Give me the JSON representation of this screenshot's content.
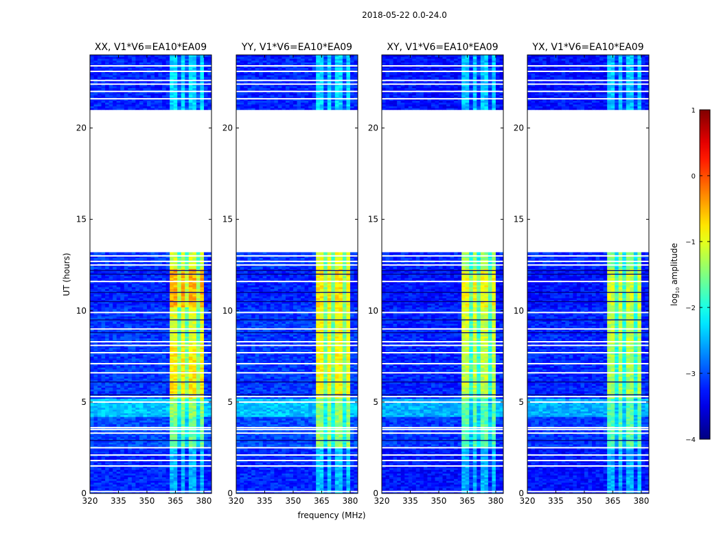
{
  "chart_data": {
    "type": "heatmap",
    "suptitle": "2018-05-22 0.0-24.0",
    "xlabel": "frequency (MHz)",
    "ylabel": "UT (hours)",
    "xlim": [
      320,
      384
    ],
    "ylim": [
      0,
      24
    ],
    "xticks": [
      320,
      335,
      350,
      365,
      380
    ],
    "yticks": [
      0,
      5,
      10,
      15,
      20
    ],
    "colormap": "jet",
    "colorbar": {
      "label": "log",
      "label_sub": "10",
      "label_rest": " amplitude",
      "range": [
        -4,
        1
      ],
      "ticks": [
        1,
        0,
        -1,
        -2,
        -3,
        -4
      ],
      "tick_labels": [
        "1",
        "0",
        "−1",
        "−2",
        "−3",
        "−4"
      ]
    },
    "rfi_band_mhz": [
      361,
      380
    ],
    "rfi_channel_gaps_mhz": [
      366.5,
      371.5,
      376.5
    ],
    "segments": [
      {
        "start": 0.0,
        "end": 2.5,
        "bg": -3.2
      },
      {
        "start": 2.5,
        "end": 4.2,
        "bg": -3.0
      },
      {
        "start": 4.2,
        "end": 5.2,
        "bg": -2.4
      },
      {
        "start": 5.2,
        "end": 8.2,
        "bg": -3.1
      },
      {
        "start": 8.2,
        "end": 10.2,
        "bg": -3.1
      },
      {
        "start": 10.2,
        "end": 12.3,
        "bg": -3.2
      },
      {
        "start": 12.3,
        "end": 13.2,
        "bg": -3.1
      },
      {
        "start": 21.0,
        "end": 24.0,
        "bg": -3.2
      }
    ],
    "flagged_hours_white": [
      0.1,
      1.5,
      1.8,
      2.1,
      2.5,
      3.3,
      3.5,
      3.6,
      5.0,
      5.3,
      6.6,
      7.1,
      7.7,
      8.1,
      8.3,
      9.0,
      9.9,
      11.6,
      12.5,
      12.7,
      13.0,
      21.6,
      22.0,
      22.4,
      22.6,
      23.1,
      23.4
    ],
    "dark_hours": [
      2.9,
      5.4,
      6.1,
      8.8,
      9.5,
      10.5,
      11.0,
      12.0,
      12.2
    ],
    "panels": [
      {
        "title": "XX, V1*V6=EA10*EA09",
        "rfi_levels": [
          -2.5,
          -1.6,
          -1.4,
          -0.8,
          -1.0,
          -0.5,
          -1.1,
          -2.3
        ],
        "bg_offset": 0.0
      },
      {
        "title": "YY, V1*V6=EA10*EA09",
        "rfi_levels": [
          -2.4,
          -1.4,
          -1.4,
          -0.9,
          -0.9,
          -0.8,
          -1.0,
          -2.3
        ],
        "bg_offset": 0.0
      },
      {
        "title": "XY, V1*V6=EA10*EA09",
        "rfi_levels": [
          -2.5,
          -1.7,
          -1.7,
          -1.2,
          -1.1,
          -0.9,
          -1.4,
          -2.4
        ],
        "bg_offset": -0.1
      },
      {
        "title": "YX, V1*V6=EA10*EA09",
        "rfi_levels": [
          -2.5,
          -1.7,
          -1.7,
          -1.3,
          -1.2,
          -1.1,
          -1.5,
          -2.4
        ],
        "bg_offset": -0.1
      }
    ]
  }
}
